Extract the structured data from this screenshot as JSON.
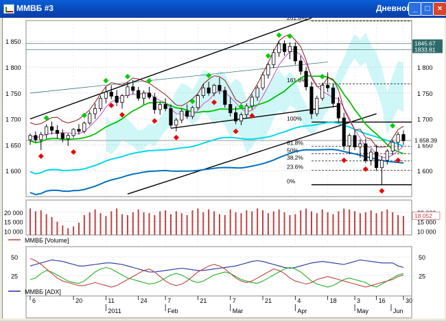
{
  "window": {
    "title": "ММВБ #3",
    "timeframe": "Дневной",
    "min_glyph": "_",
    "max_glyph": "□",
    "close_glyph": "×"
  },
  "colors": {
    "up": "#000000",
    "down": "#000000",
    "bull_marker": "#00cc00",
    "bear_marker": "#ee0000",
    "ma_short": "#cc66cc",
    "ma_mid": "#00c000",
    "ma_long": "#0070c0",
    "ma_very_long": "#00d8e8",
    "kumo_fill": "#a8f0f0",
    "tenkan": "#8b1a1a",
    "volume": "#c04040",
    "adx": "#2030a0",
    "plus_di": "#20b020",
    "minus_di": "#c04040"
  },
  "chart_data": [
    {
      "type": "candlestick",
      "panel": "price",
      "y_ticks": [
        1600,
        1650,
        1700,
        1750,
        1800,
        1850
      ],
      "y_tick_labels": [
        "1 600",
        "1 650",
        "1 700",
        "1 750",
        "1 800",
        "1 850"
      ],
      "ylim": [
        1550,
        1890
      ],
      "price_labels": [
        "1845.67",
        "1833.81",
        "1 658.39"
      ],
      "price_label_values": [
        1845.67,
        1833.81,
        1658.39
      ],
      "fibo_levels": [
        {
          "label": "261.8%",
          "value": 1889
        },
        {
          "label": "161.8%",
          "value": 1768
        },
        {
          "label": "100%",
          "value": 1694
        },
        {
          "label": "61.8%",
          "value": 1647
        },
        {
          "label": "50%",
          "value": 1633
        },
        {
          "label": "38.2%",
          "value": 1619
        },
        {
          "label": "23.6%",
          "value": 1601
        },
        {
          "label": "0%",
          "value": 1573
        }
      ],
      "candles": [
        [
          1660,
          1672,
          1650,
          1668
        ],
        [
          1668,
          1676,
          1655,
          1660
        ],
        [
          1660,
          1675,
          1640,
          1670
        ],
        [
          1670,
          1690,
          1662,
          1685
        ],
        [
          1685,
          1695,
          1670,
          1678
        ],
        [
          1678,
          1688,
          1662,
          1672
        ],
        [
          1672,
          1680,
          1655,
          1662
        ],
        [
          1662,
          1672,
          1648,
          1668
        ],
        [
          1668,
          1682,
          1664,
          1680
        ],
        [
          1680,
          1690,
          1670,
          1676
        ],
        [
          1676,
          1695,
          1672,
          1692
        ],
        [
          1692,
          1715,
          1688,
          1710
        ],
        [
          1710,
          1730,
          1700,
          1720
        ],
        [
          1720,
          1745,
          1715,
          1740
        ],
        [
          1740,
          1762,
          1730,
          1752
        ],
        [
          1752,
          1765,
          1738,
          1744
        ],
        [
          1744,
          1756,
          1725,
          1732
        ],
        [
          1732,
          1748,
          1720,
          1745
        ],
        [
          1745,
          1770,
          1740,
          1762
        ],
        [
          1762,
          1775,
          1748,
          1755
        ],
        [
          1755,
          1762,
          1735,
          1740
        ],
        [
          1740,
          1755,
          1728,
          1750
        ],
        [
          1750,
          1762,
          1738,
          1742
        ],
        [
          1742,
          1750,
          1710,
          1718
        ],
        [
          1718,
          1732,
          1708,
          1728
        ],
        [
          1728,
          1740,
          1715,
          1720
        ],
        [
          1720,
          1728,
          1682,
          1688
        ],
        [
          1688,
          1702,
          1676,
          1698
        ],
        [
          1698,
          1720,
          1692,
          1715
        ],
        [
          1715,
          1728,
          1700,
          1705
        ],
        [
          1705,
          1725,
          1700,
          1722
        ],
        [
          1722,
          1748,
          1718,
          1745
        ],
        [
          1745,
          1768,
          1740,
          1760
        ],
        [
          1760,
          1772,
          1745,
          1750
        ],
        [
          1750,
          1768,
          1744,
          1765
        ],
        [
          1765,
          1780,
          1748,
          1755
        ],
        [
          1755,
          1762,
          1722,
          1728
        ],
        [
          1728,
          1742,
          1705,
          1712
        ],
        [
          1712,
          1724,
          1690,
          1696
        ],
        [
          1696,
          1712,
          1688,
          1708
        ],
        [
          1708,
          1730,
          1702,
          1725
        ],
        [
          1725,
          1748,
          1718,
          1742
        ],
        [
          1742,
          1765,
          1735,
          1760
        ],
        [
          1760,
          1790,
          1755,
          1785
        ],
        [
          1785,
          1810,
          1778,
          1805
        ],
        [
          1805,
          1835,
          1798,
          1828
        ],
        [
          1828,
          1850,
          1820,
          1845
        ],
        [
          1845,
          1852,
          1822,
          1830
        ],
        [
          1830,
          1848,
          1815,
          1840
        ],
        [
          1840,
          1848,
          1805,
          1812
        ],
        [
          1812,
          1822,
          1785,
          1792
        ],
        [
          1792,
          1800,
          1755,
          1762
        ],
        [
          1762,
          1772,
          1700,
          1710
        ],
        [
          1710,
          1745,
          1705,
          1740
        ],
        [
          1740,
          1770,
          1735,
          1765
        ],
        [
          1765,
          1790,
          1752,
          1760
        ],
        [
          1760,
          1768,
          1722,
          1730
        ],
        [
          1730,
          1742,
          1695,
          1702
        ],
        [
          1702,
          1712,
          1640,
          1648
        ],
        [
          1648,
          1672,
          1632,
          1668
        ],
        [
          1668,
          1678,
          1640,
          1646
        ],
        [
          1646,
          1660,
          1625,
          1652
        ],
        [
          1652,
          1662,
          1615,
          1620
        ],
        [
          1620,
          1642,
          1610,
          1636
        ],
        [
          1636,
          1650,
          1600,
          1606
        ],
        [
          1606,
          1628,
          1573,
          1620
        ],
        [
          1620,
          1642,
          1612,
          1638
        ],
        [
          1638,
          1660,
          1630,
          1655
        ],
        [
          1655,
          1675,
          1640,
          1670
        ],
        [
          1670,
          1678,
          1650,
          1658
        ]
      ],
      "markers_up": [
        [
          3,
          1690
        ],
        [
          10,
          1695
        ],
        [
          14,
          1762
        ],
        [
          18,
          1770
        ],
        [
          22,
          1762
        ],
        [
          30,
          1722
        ],
        [
          33,
          1772
        ],
        [
          39,
          1712
        ],
        [
          44,
          1810
        ],
        [
          46,
          1850
        ],
        [
          48,
          1848
        ],
        [
          54,
          1770
        ],
        [
          67,
          1675
        ]
      ],
      "markers_down": [
        [
          2,
          1640
        ],
        [
          8,
          1648
        ],
        [
          15,
          1738
        ],
        [
          17,
          1720
        ],
        [
          23,
          1708
        ],
        [
          27,
          1676
        ],
        [
          34,
          1744
        ],
        [
          38,
          1688
        ],
        [
          41,
          1718
        ],
        [
          58,
          1632
        ],
        [
          62,
          1615
        ],
        [
          65,
          1573
        ],
        [
          68,
          1632
        ]
      ]
    },
    {
      "type": "bar",
      "panel": "volume",
      "legend": "ММВБ [Volume]",
      "y_ticks": [
        10000,
        15000,
        20000
      ],
      "y_tick_labels": [
        "10 000",
        "15 000",
        "20 000"
      ],
      "ylim": [
        8000,
        25000
      ],
      "last_value_label": "18 052",
      "right_label": "20 000",
      "values": [
        22000,
        20500,
        21000,
        19000,
        17500,
        15000,
        13000,
        11500,
        12500,
        14500,
        18500,
        20000,
        21500,
        19500,
        18000,
        20500,
        22000,
        19000,
        18500,
        20000,
        21500,
        20000,
        19500,
        18500,
        20500,
        21000,
        19000,
        20500,
        19500,
        18500,
        21000,
        22000,
        20000,
        21500,
        20500,
        19000,
        18500,
        21500,
        20000,
        19500,
        21000,
        20500,
        22000,
        21000,
        19500,
        20500,
        21500,
        20000,
        18500,
        19000,
        21000,
        22000,
        20500,
        19500,
        21500,
        20000,
        19000,
        20500,
        22000,
        21500,
        20500,
        19500,
        20000,
        21000,
        19500,
        20500,
        21500,
        20000,
        18500,
        18052
      ]
    },
    {
      "type": "line",
      "panel": "adx",
      "legend": "ММВБ [ADX]",
      "y_ticks": [
        25,
        50
      ],
      "y_tick_labels": [
        "25",
        "50"
      ],
      "right_tick_labels": [
        "50",
        "25"
      ],
      "ylim": [
        0,
        60
      ],
      "series": [
        {
          "color_key": "adx",
          "values": [
            38,
            40,
            42,
            44,
            46,
            45,
            44,
            42,
            40,
            38,
            38,
            39,
            40,
            41,
            42,
            42,
            41,
            40,
            38,
            36,
            34,
            32,
            30,
            30,
            31,
            32,
            33,
            34,
            35,
            34,
            33,
            32,
            32,
            33,
            34,
            35,
            36,
            37,
            38,
            40,
            42,
            44,
            45,
            44,
            42,
            40,
            38,
            36,
            35,
            36,
            38,
            40,
            42,
            43,
            44,
            43,
            42,
            41,
            40,
            42,
            44,
            46,
            45,
            44,
            43,
            42,
            42,
            42,
            38,
            36
          ]
        },
        {
          "color_key": "plus_di",
          "values": [
            20,
            22,
            28,
            32,
            30,
            26,
            22,
            18,
            16,
            15,
            18,
            24,
            30,
            34,
            36,
            34,
            30,
            26,
            22,
            20,
            18,
            16,
            14,
            15,
            18,
            22,
            26,
            28,
            26,
            22,
            18,
            16,
            18,
            22,
            26,
            28,
            30,
            28,
            24,
            20,
            18,
            16,
            15,
            18,
            22,
            26,
            30,
            34,
            36,
            34,
            30,
            24,
            18,
            14,
            12,
            10,
            12,
            16,
            20,
            22,
            20,
            18,
            16,
            12,
            10,
            14,
            18,
            22,
            26,
            28
          ]
        },
        {
          "color_key": "minus_di",
          "values": [
            48,
            45,
            40,
            34,
            28,
            22,
            18,
            16,
            14,
            12,
            12,
            14,
            16,
            14,
            12,
            10,
            12,
            16,
            20,
            24,
            28,
            32,
            34,
            30,
            24,
            18,
            14,
            12,
            14,
            18,
            24,
            30,
            34,
            38,
            40,
            38,
            34,
            28,
            22,
            18,
            16,
            18,
            22,
            26,
            30,
            34,
            32,
            28,
            22,
            18,
            16,
            14,
            16,
            20,
            22,
            24,
            22,
            20,
            18,
            16,
            14,
            12,
            10,
            12,
            14,
            16,
            18,
            20,
            24,
            26
          ]
        }
      ]
    }
  ],
  "x_axis": {
    "tick_labels": [
      "6",
      "20",
      "11",
      "24",
      "7",
      "21",
      "7",
      "21",
      "4",
      "18",
      "3",
      "16",
      "30",
      "6",
      "20",
      "11",
      "24",
      "7",
      "21",
      "4",
      "18",
      "3",
      "16",
      "30",
      "Jun"
    ],
    "day_ticks": [
      {
        "label": "6",
        "i": 0
      },
      {
        "label": "20",
        "i": 8
      },
      {
        "label": "11",
        "i": 14
      },
      {
        "label": "24",
        "i": 20
      },
      {
        "label": "7",
        "i": 25
      },
      {
        "label": "21",
        "i": 31
      },
      {
        "label": "7",
        "i": 37
      },
      {
        "label": "21",
        "i": 43
      },
      {
        "label": "4",
        "i": 49
      },
      {
        "label": "18",
        "i": 55
      },
      {
        "label": "3",
        "i": 60
      },
      {
        "label": "16",
        "i": 64
      },
      {
        "label": "30",
        "i": 69
      }
    ],
    "month_labels": [
      {
        "label": "2011",
        "i": 14
      },
      {
        "label": "Feb",
        "i": 25
      },
      {
        "label": "Mar",
        "i": 37
      },
      {
        "label": "Apr",
        "i": 49
      },
      {
        "label": "May",
        "i": 60
      },
      {
        "label": "Jun",
        "i": 72
      }
    ]
  }
}
